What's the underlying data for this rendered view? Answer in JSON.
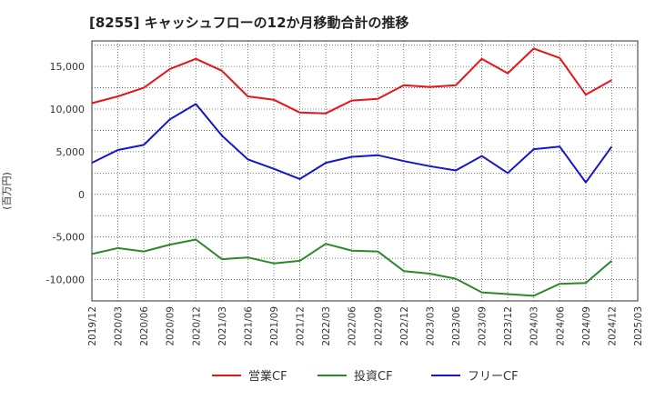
{
  "chart_data": {
    "type": "line",
    "title": "[8255]  キャッシュフローの12か月移動合計の推移",
    "ylabel": "(百万円)",
    "xlabel": "",
    "x": [
      "2019/12",
      "2020/03",
      "2020/06",
      "2020/09",
      "2020/12",
      "2021/03",
      "2021/06",
      "2021/09",
      "2021/12",
      "2022/03",
      "2022/06",
      "2022/09",
      "2022/12",
      "2023/03",
      "2023/06",
      "2023/09",
      "2023/12",
      "2024/03",
      "2024/06",
      "2024/09",
      "2024/12",
      "2025/03"
    ],
    "yticks": [
      15000,
      10000,
      5000,
      0,
      -5000,
      -10000
    ],
    "ytick_labels": [
      "15,000",
      "10,000",
      "5,000",
      "0",
      "-5,000",
      "-10,000"
    ],
    "ylim": [
      -12500,
      18000
    ],
    "grid": true,
    "legend_position": "bottom",
    "series": [
      {
        "name": "営業CF",
        "color": "#e8141a",
        "values": [
          10700,
          11500,
          12500,
          14700,
          15900,
          14500,
          11500,
          11100,
          9600,
          9500,
          11000,
          11200,
          12800,
          12600,
          12800,
          15900,
          14200,
          17100,
          16000,
          11700,
          13400,
          null
        ]
      },
      {
        "name": "投資CF",
        "color": "#2a8a2a",
        "values": [
          -7000,
          -6300,
          -6700,
          -5900,
          -5300,
          -7600,
          -7400,
          -8100,
          -7800,
          -5800,
          -6600,
          -6700,
          -9000,
          -9300,
          -9900,
          -11500,
          -11700,
          -11900,
          -10500,
          -10400,
          -7800,
          null
        ]
      },
      {
        "name": "フリーCF",
        "color": "#1515cc",
        "values": [
          3700,
          5200,
          5800,
          8800,
          10600,
          6900,
          4100,
          3000,
          1800,
          3700,
          4400,
          4600,
          3900,
          3300,
          2800,
          4500,
          2500,
          5300,
          5600,
          1400,
          5600,
          null
        ]
      }
    ]
  }
}
